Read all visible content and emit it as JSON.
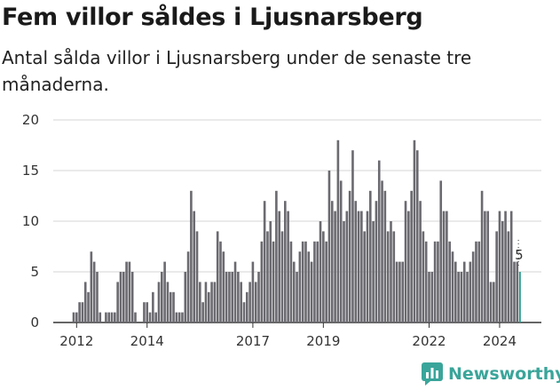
{
  "header": {
    "title": "Fem villor såldes i Ljusnarsberg",
    "subtitle": "Antal sålda villor i Ljusnarsberg under de senaste tre månaderna."
  },
  "brand": {
    "name": "Newsworthy",
    "icon": "bar-chart-logo-icon",
    "color": "#3aa59a"
  },
  "colors": {
    "bar": "#6b6a70",
    "highlight": "#2a9d8f",
    "grid": "#d6d6d6",
    "axis": "#333333"
  },
  "chart_data": {
    "type": "bar",
    "title": "Fem villor såldes i Ljusnarsberg",
    "subtitle": "Antal sålda villor i Ljusnarsberg under de senaste tre månaderna.",
    "xlabel": "",
    "ylabel": "",
    "ylim": [
      0,
      20
    ],
    "yticks": [
      0,
      5,
      10,
      15,
      20
    ],
    "grid": true,
    "x_start": "2011-12",
    "x_tick_labels": [
      {
        "label": "2012",
        "month": "2012-01"
      },
      {
        "label": "2014",
        "month": "2014-01"
      },
      {
        "label": "2017",
        "month": "2017-01"
      },
      {
        "label": "2019",
        "month": "2019-01"
      },
      {
        "label": "2022",
        "month": "2022-01"
      },
      {
        "label": "2024",
        "month": "2024-01"
      }
    ],
    "values": [
      1,
      1,
      2,
      2,
      4,
      3,
      7,
      6,
      5,
      1,
      0,
      1,
      1,
      1,
      1,
      4,
      5,
      5,
      6,
      6,
      5,
      1,
      0,
      0,
      2,
      2,
      1,
      3,
      1,
      4,
      5,
      6,
      4,
      3,
      3,
      1,
      1,
      1,
      5,
      7,
      13,
      11,
      9,
      4,
      2,
      4,
      3,
      4,
      4,
      9,
      8,
      7,
      5,
      5,
      5,
      6,
      5,
      4,
      2,
      3,
      4,
      6,
      4,
      5,
      8,
      12,
      9,
      10,
      8,
      13,
      11,
      9,
      12,
      11,
      8,
      6,
      5,
      7,
      8,
      8,
      7,
      6,
      8,
      8,
      10,
      9,
      8,
      15,
      12,
      11,
      18,
      14,
      10,
      11,
      13,
      17,
      12,
      11,
      11,
      9,
      11,
      13,
      10,
      12,
      16,
      14,
      13,
      9,
      10,
      9,
      6,
      6,
      6,
      12,
      11,
      13,
      18,
      17,
      12,
      9,
      8,
      5,
      5,
      8,
      8,
      14,
      11,
      11,
      8,
      7,
      6,
      5,
      5,
      6,
      5,
      6,
      7,
      8,
      8,
      13,
      11,
      11,
      4,
      4,
      9,
      11,
      10,
      11,
      9,
      11,
      6,
      6,
      5
    ],
    "highlight_last": true,
    "annotation": {
      "text": "5",
      "value": 5
    }
  }
}
